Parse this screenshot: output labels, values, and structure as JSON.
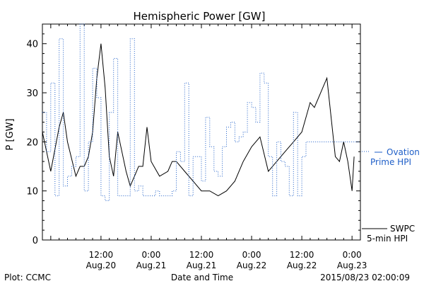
{
  "chart_data": {
    "type": "line",
    "title": "Hemispheric Power [GW]",
    "ylabel": "P [GW]",
    "xlabel": "Date and Time",
    "ylim": [
      0,
      44
    ],
    "xlim": [
      "2015-08-19 22:00",
      "2015-08-23 02:00"
    ],
    "grid": false,
    "y_ticks": [
      "0",
      "10",
      "20",
      "30",
      "40"
    ],
    "x_ticks": [
      {
        "at": "2015-08-20 12:00",
        "time": "12:00",
        "date": "Aug.20"
      },
      {
        "at": "2015-08-21 00:00",
        "time": "0:00",
        "date": "Aug.21"
      },
      {
        "at": "2015-08-21 12:00",
        "time": "12:00",
        "date": "Aug.21"
      },
      {
        "at": "2015-08-22 00:00",
        "time": "0:00",
        "date": "Aug.22"
      },
      {
        "at": "2015-08-22 12:00",
        "time": "12:00",
        "date": "Aug.22"
      },
      {
        "at": "2015-08-23 00:00",
        "time": "0:00",
        "date": "Aug.23"
      }
    ],
    "series": [
      {
        "name": "SWPC 5-min HPI",
        "color": "#000000",
        "style": "solid",
        "x": [
          "2015-08-19 22:00",
          "2015-08-20 00:00",
          "2015-08-20 02:00",
          "2015-08-20 03:00",
          "2015-08-20 04:00",
          "2015-08-20 06:00",
          "2015-08-20 07:00",
          "2015-08-20 08:00",
          "2015-08-20 09:00",
          "2015-08-20 10:00",
          "2015-08-20 11:00",
          "2015-08-20 12:00",
          "2015-08-20 13:00",
          "2015-08-20 14:00",
          "2015-08-20 15:00",
          "2015-08-20 16:00",
          "2015-08-20 17:00",
          "2015-08-20 18:00",
          "2015-08-20 19:00",
          "2015-08-20 20:00",
          "2015-08-20 21:00",
          "2015-08-20 22:00",
          "2015-08-20 23:00",
          "2015-08-21 00:00",
          "2015-08-21 02:00",
          "2015-08-21 04:00",
          "2015-08-21 05:00",
          "2015-08-21 06:00",
          "2015-08-21 08:00",
          "2015-08-21 10:00",
          "2015-08-21 12:00",
          "2015-08-21 14:00",
          "2015-08-21 16:00",
          "2015-08-21 18:00",
          "2015-08-21 20:00",
          "2015-08-21 22:00",
          "2015-08-22 00:00",
          "2015-08-22 02:00",
          "2015-08-22 04:00",
          "2015-08-22 06:00",
          "2015-08-22 08:00",
          "2015-08-22 10:00",
          "2015-08-22 12:00",
          "2015-08-22 13:00",
          "2015-08-22 14:00",
          "2015-08-22 15:00",
          "2015-08-22 16:00",
          "2015-08-22 17:00",
          "2015-08-22 18:00",
          "2015-08-22 20:00",
          "2015-08-22 21:00",
          "2015-08-22 22:00",
          "2015-08-22 23:00",
          "2015-08-23 00:00",
          "2015-08-23 00:30"
        ],
        "y": [
          22,
          14,
          23,
          26,
          20,
          13,
          15,
          15,
          17,
          22,
          33,
          40,
          31,
          17,
          13,
          22,
          18,
          14,
          11,
          13,
          15,
          15,
          23,
          16,
          13,
          14,
          16,
          16,
          14,
          12,
          10,
          10,
          9,
          10,
          12,
          16,
          19,
          21,
          14,
          16,
          18,
          20,
          22,
          25,
          28,
          27,
          29,
          31,
          33,
          17,
          16,
          20,
          16,
          10,
          17
        ]
      },
      {
        "name": "Ovation Prime HPI",
        "color": "#1f5fc8",
        "style": "dotted-step",
        "x": [
          "2015-08-19 22:00",
          "2015-08-19 23:00",
          "2015-08-20 00:00",
          "2015-08-20 01:00",
          "2015-08-20 02:00",
          "2015-08-20 03:00",
          "2015-08-20 04:00",
          "2015-08-20 05:00",
          "2015-08-20 06:00",
          "2015-08-20 07:00",
          "2015-08-20 08:00",
          "2015-08-20 09:00",
          "2015-08-20 10:00",
          "2015-08-20 11:00",
          "2015-08-20 12:00",
          "2015-08-20 13:00",
          "2015-08-20 14:00",
          "2015-08-20 15:00",
          "2015-08-20 16:00",
          "2015-08-20 17:00",
          "2015-08-20 18:00",
          "2015-08-20 19:00",
          "2015-08-20 20:00",
          "2015-08-20 21:00",
          "2015-08-20 22:00",
          "2015-08-20 23:00",
          "2015-08-21 00:00",
          "2015-08-21 01:00",
          "2015-08-21 02:00",
          "2015-08-21 03:00",
          "2015-08-21 04:00",
          "2015-08-21 05:00",
          "2015-08-21 06:00",
          "2015-08-21 07:00",
          "2015-08-21 08:00",
          "2015-08-21 09:00",
          "2015-08-21 10:00",
          "2015-08-21 11:00",
          "2015-08-21 12:00",
          "2015-08-21 13:00",
          "2015-08-21 14:00",
          "2015-08-21 15:00",
          "2015-08-21 16:00",
          "2015-08-21 17:00",
          "2015-08-21 18:00",
          "2015-08-21 19:00",
          "2015-08-21 20:00",
          "2015-08-21 21:00",
          "2015-08-21 22:00",
          "2015-08-21 23:00",
          "2015-08-22 00:00",
          "2015-08-22 01:00",
          "2015-08-22 02:00",
          "2015-08-22 03:00",
          "2015-08-22 04:00",
          "2015-08-22 05:00",
          "2015-08-22 06:00",
          "2015-08-22 07:00",
          "2015-08-22 08:00",
          "2015-08-22 09:00",
          "2015-08-22 10:00",
          "2015-08-22 11:00",
          "2015-08-22 12:00",
          "2015-08-22 13:00",
          "2015-08-22 14:00",
          "2015-08-22 15:00",
          "2015-08-22 16:00",
          "2015-08-22 17:00",
          "2015-08-22 18:00",
          "2015-08-22 19:00",
          "2015-08-22 20:00",
          "2015-08-22 21:00",
          "2015-08-22 22:00",
          "2015-08-22 23:00",
          "2015-08-23 00:00",
          "2015-08-23 01:00"
        ],
        "y": [
          26,
          18,
          32,
          9,
          41,
          11,
          13,
          15,
          17,
          44,
          10,
          20,
          35,
          29,
          9,
          8,
          26,
          37,
          9,
          9,
          9,
          41,
          10,
          11,
          9,
          9,
          9,
          10,
          9,
          9,
          9,
          10,
          18,
          16,
          32,
          9,
          17,
          17,
          12,
          25,
          19,
          14,
          13,
          19,
          23,
          24,
          20,
          21,
          22,
          28,
          27,
          24,
          34,
          32,
          17,
          9,
          20,
          16,
          15,
          9,
          26,
          9,
          17,
          20,
          20,
          20,
          20,
          20,
          20,
          20,
          20,
          20,
          20,
          20,
          20,
          20
        ]
      }
    ]
  },
  "legend": {
    "ovation_line1": "Ovation",
    "ovation_line2": "Prime HPI",
    "swpc_line1": "SWPC",
    "swpc_line2": "5-min HPI"
  },
  "footer": {
    "left": "Plot: CCMC",
    "center": "Date and Time",
    "right": "2015/08/23 02:00:09"
  }
}
